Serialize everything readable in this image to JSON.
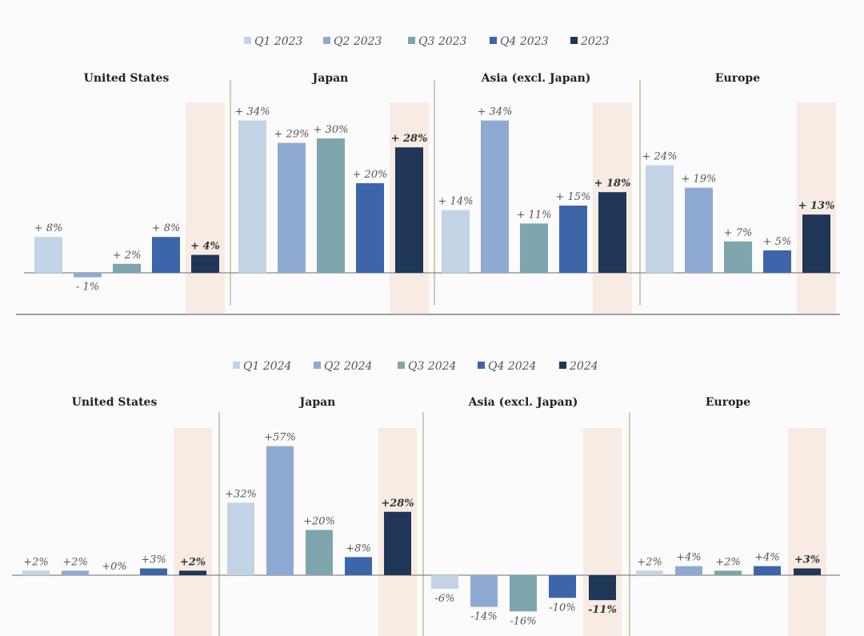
{
  "chart_data": [
    {
      "type": "bar",
      "legend": [
        "Q1 2023",
        "Q2 2023",
        "Q3 2023",
        "Q4 2023",
        "2023"
      ],
      "legend_position": "top",
      "colors": [
        "#c3d3e6",
        "#8eaad3",
        "#7ea5ae",
        "#3d66aa",
        "#1f3657"
      ],
      "highlight_color": "#f7ebe3",
      "panels": [
        {
          "title": "United States",
          "values": [
            8,
            -1,
            2,
            8,
            4
          ],
          "labels": [
            "+ 8%",
            "- 1%",
            "+ 2%",
            "+ 8%",
            "+ 4%"
          ]
        },
        {
          "title": "Japan",
          "values": [
            34,
            29,
            30,
            20,
            28
          ],
          "labels": [
            "+ 34%",
            "+ 29%",
            "+ 30%",
            "+ 20%",
            "+ 28%"
          ]
        },
        {
          "title": "Asia (excl. Japan)",
          "values": [
            14,
            34,
            11,
            15,
            18
          ],
          "labels": [
            "+ 14%",
            "+ 34%",
            "+ 11%",
            "+ 15%",
            "+ 18%"
          ]
        },
        {
          "title": "Europe",
          "values": [
            24,
            19,
            7,
            5,
            13
          ],
          "labels": [
            "+ 24%",
            "+ 19%",
            "+ 7%",
            "+ 5%",
            "+ 13%"
          ]
        }
      ]
    },
    {
      "type": "bar",
      "legend": [
        "Q1 2024",
        "Q2 2024",
        "Q3 2024",
        "Q4 2024",
        "2024"
      ],
      "legend_position": "top",
      "colors": [
        "#c3d3e6",
        "#8eaad3",
        "#7ea5ae",
        "#3d66aa",
        "#1f3657"
      ],
      "highlight_color": "#f7ebe3",
      "panels": [
        {
          "title": "United States",
          "values": [
            2,
            2,
            0,
            3,
            2
          ],
          "labels": [
            "+2%",
            "+2%",
            "+0%",
            "+3%",
            "+2%"
          ]
        },
        {
          "title": "Japan",
          "values": [
            32,
            57,
            20,
            8,
            28
          ],
          "labels": [
            "+32%",
            "+57%",
            "+20%",
            "+8%",
            "+28%"
          ]
        },
        {
          "title": "Asia (excl. Japan)",
          "values": [
            -6,
            -14,
            -16,
            -10,
            -11
          ],
          "labels": [
            "-6%",
            "-14%",
            "-16%",
            "-10%",
            "-11%"
          ]
        },
        {
          "title": "Europe",
          "values": [
            2,
            4,
            2,
            4,
            3
          ],
          "labels": [
            "+2%",
            "+4%",
            "+2%",
            "+4%",
            "+3%"
          ]
        }
      ]
    }
  ]
}
